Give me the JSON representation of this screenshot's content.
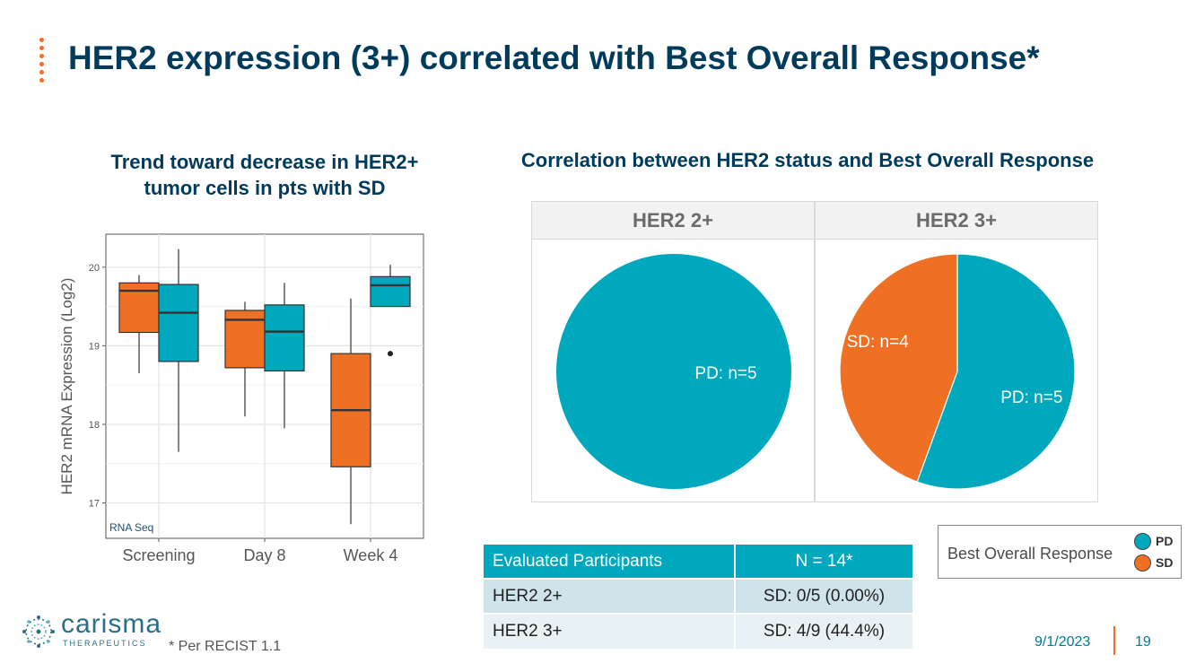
{
  "slide": {
    "title": "HER2 expression (3+) correlated with Best Overall Response*",
    "footnote": "* Per RECIST 1.1",
    "date": "9/1/2023",
    "page_number": "19",
    "logo": {
      "name": "carisma",
      "tagline": "THERAPEUTICS"
    },
    "accent_color": "#f07023",
    "title_color": "#003b5c"
  },
  "colors": {
    "PD": "#00a8bd",
    "SD": "#f07023"
  },
  "chart_data": [
    {
      "type": "boxplot",
      "title": "Trend toward decrease in HER2+ tumor cells in pts with SD",
      "ylabel": "HER2 mRNA Expression (Log2)",
      "xlabel": "",
      "annotation": "RNA Seq",
      "categories": [
        "Screening",
        "Day 8",
        "Week 4"
      ],
      "ylim": [
        16.55,
        20.42
      ],
      "yticks": [
        17,
        18,
        19,
        20
      ],
      "grid": true,
      "boxes": [
        {
          "category": "Screening",
          "group": "SD",
          "whisker_low": 18.65,
          "q1": 19.17,
          "median": 19.7,
          "q3": 19.8,
          "whisker_high": 19.9,
          "outliers": []
        },
        {
          "category": "Screening",
          "group": "PD",
          "whisker_low": 17.65,
          "q1": 18.8,
          "median": 19.42,
          "q3": 19.78,
          "whisker_high": 20.23,
          "outliers": []
        },
        {
          "category": "Day 8",
          "group": "SD",
          "whisker_low": 18.1,
          "q1": 18.72,
          "median": 19.33,
          "q3": 19.45,
          "whisker_high": 19.56,
          "outliers": []
        },
        {
          "category": "Day 8",
          "group": "PD",
          "whisker_low": 17.95,
          "q1": 18.68,
          "median": 19.18,
          "q3": 19.52,
          "whisker_high": 19.8,
          "outliers": []
        },
        {
          "category": "Week 4",
          "group": "SD",
          "whisker_low": 16.73,
          "q1": 17.46,
          "median": 18.18,
          "q3": 18.9,
          "whisker_high": 19.6,
          "outliers": []
        },
        {
          "category": "Week 4",
          "group": "PD",
          "whisker_low": 19.5,
          "q1": 19.5,
          "median": 19.77,
          "q3": 19.88,
          "whisker_high": 20.03,
          "outliers": [
            18.9
          ]
        }
      ]
    },
    {
      "type": "pie",
      "title": "Correlation between HER2 status and Best Overall Response",
      "panels": [
        {
          "name": "HER2 2+",
          "slices": [
            {
              "label": "PD: n=5",
              "group": "PD",
              "value": 5
            }
          ]
        },
        {
          "name": "HER2 3+",
          "slices": [
            {
              "label": "PD: n=5",
              "group": "PD",
              "value": 5
            },
            {
              "label": "SD: n=4",
              "group": "SD",
              "value": 4
            }
          ]
        }
      ],
      "legend": {
        "title": "Best Overall Response",
        "placement": "bottom-right",
        "items": [
          {
            "label": "PD",
            "group": "PD"
          },
          {
            "label": "SD",
            "group": "SD"
          }
        ]
      }
    }
  ],
  "table": {
    "header": [
      "Evaluated Participants",
      "N = 14*"
    ],
    "rows": [
      [
        "HER2 2+",
        "SD: 0/5 (0.00%)"
      ],
      [
        "HER2 3+",
        "SD: 4/9 (44.4%)"
      ]
    ]
  }
}
